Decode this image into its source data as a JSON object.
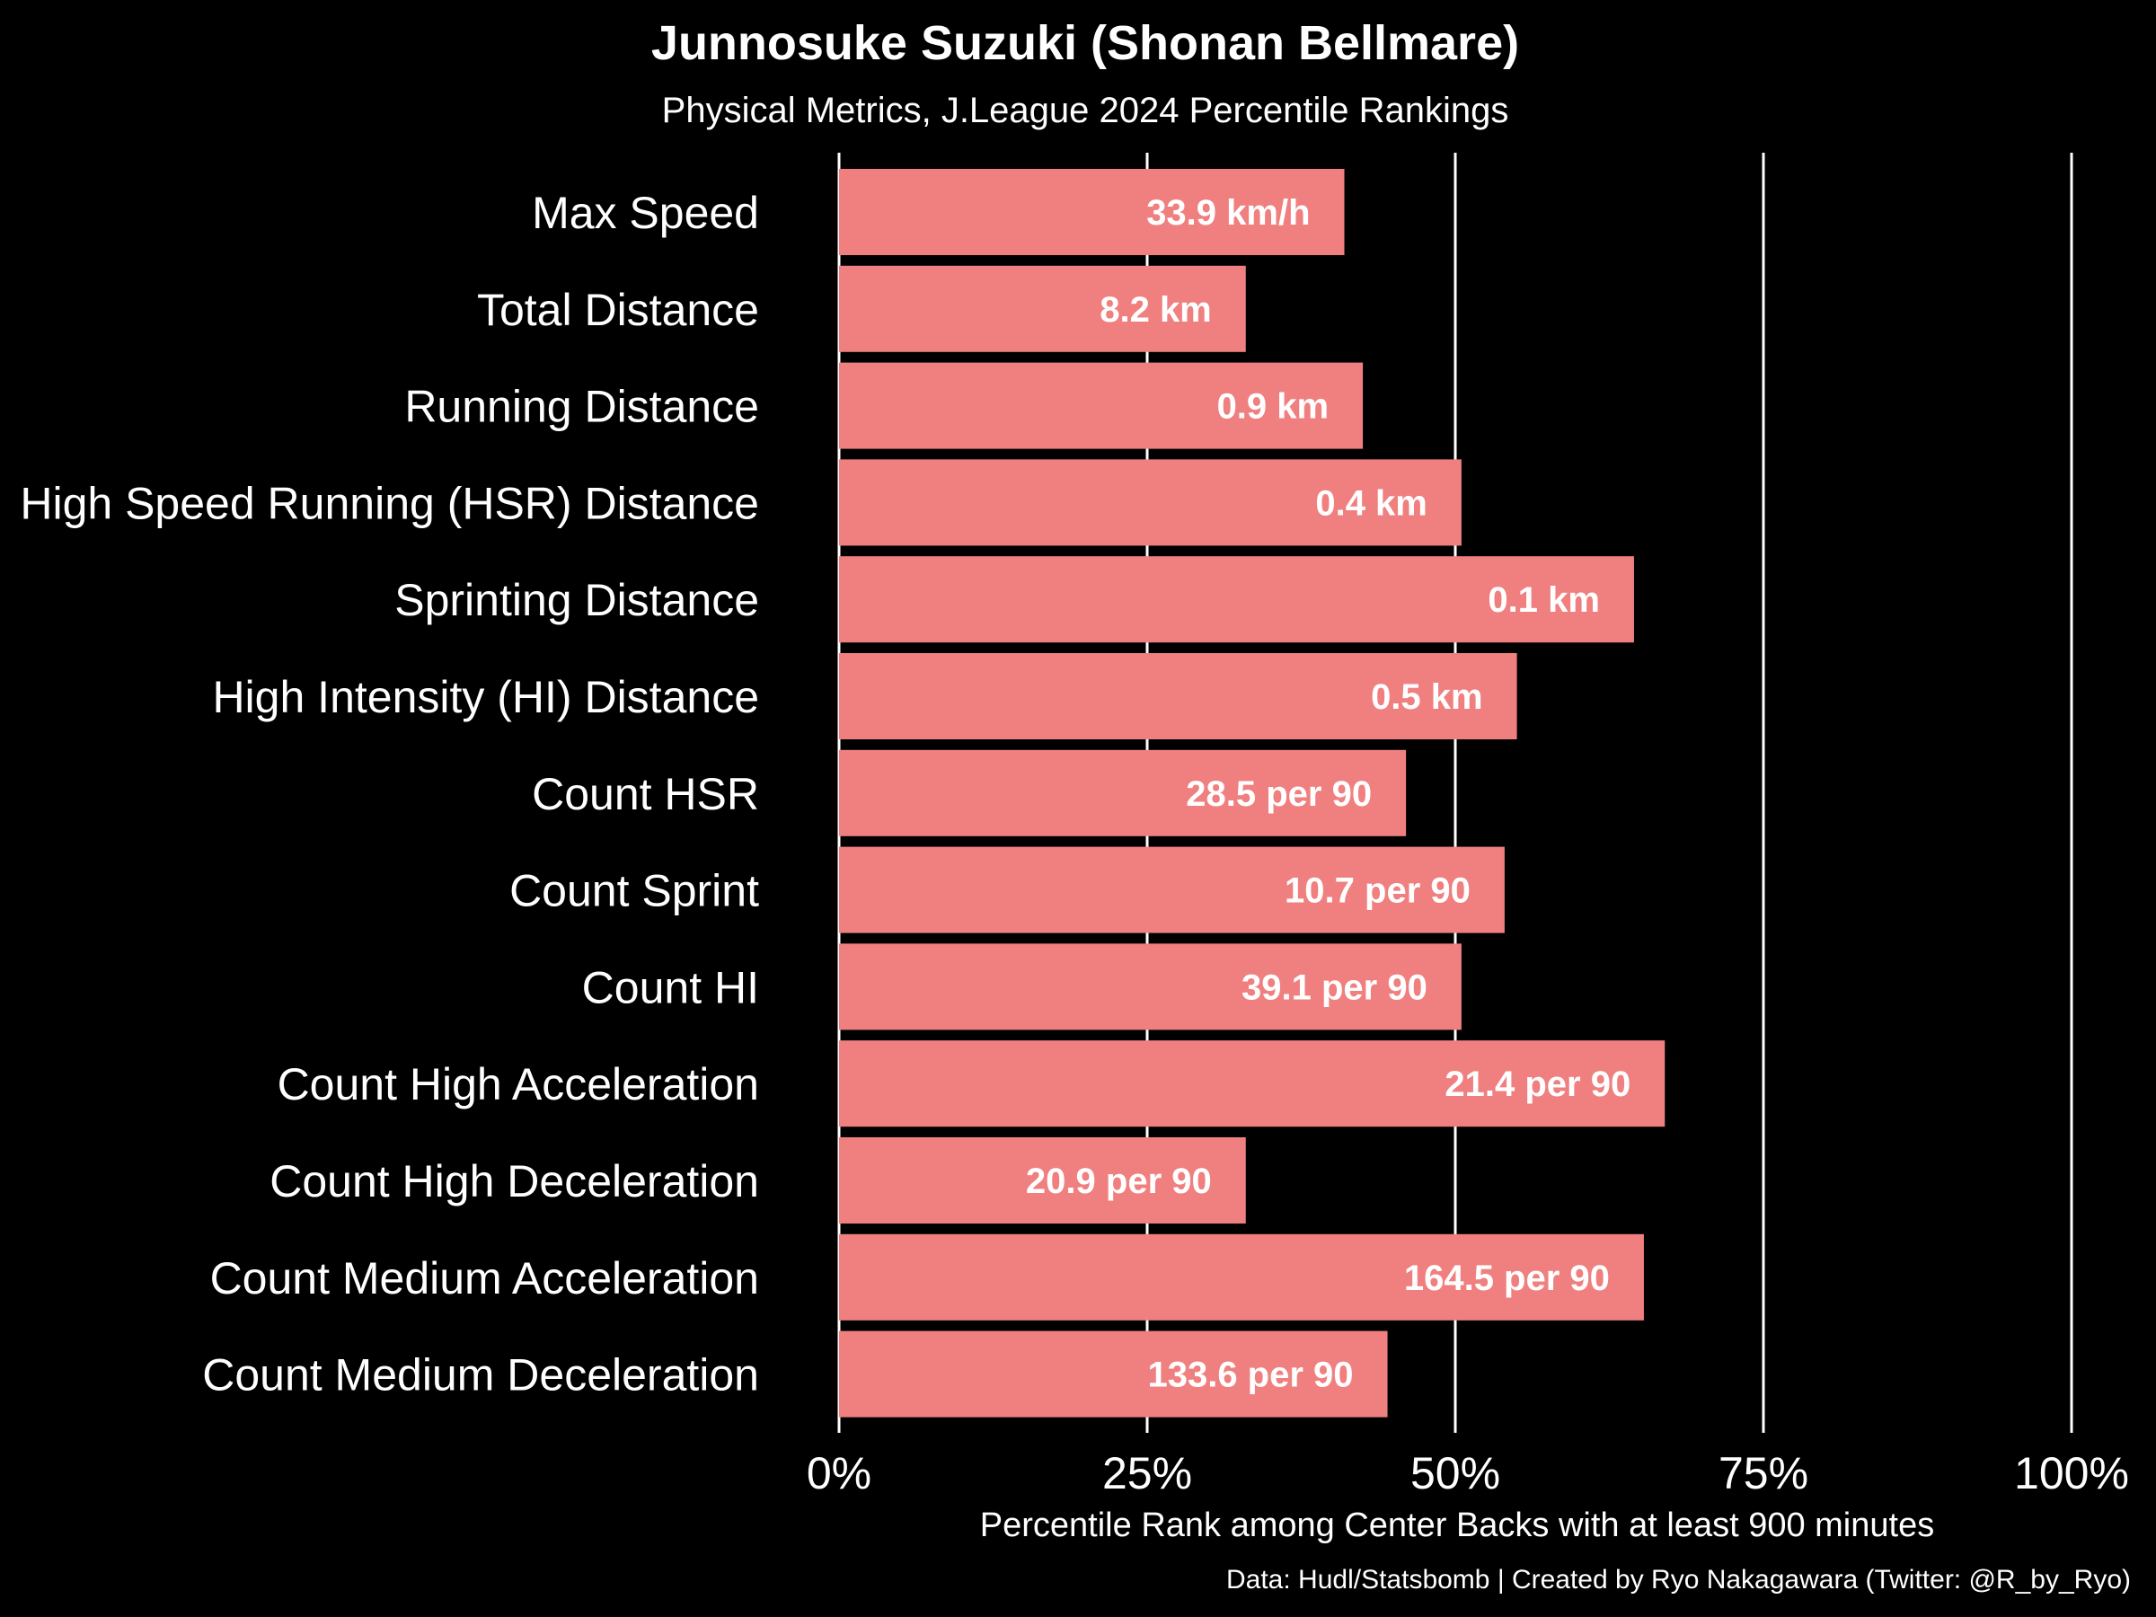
{
  "colors": {
    "background": "#000000",
    "bar": "#f08080",
    "text": "#ffffff",
    "grid": "#ffffff"
  },
  "chart_data": {
    "type": "bar",
    "orientation": "horizontal",
    "title": "Junnosuke Suzuki (Shonan Bellmare)",
    "subtitle": "Physical Metrics, J.League 2024 Percentile Rankings",
    "xlabel": "Percentile Rank among Center Backs with at least 900 minutes",
    "ylabel": "",
    "caption": "Data: Hudl/Statsbomb | Created by Ryo Nakagawara (Twitter: @R_by_Ryo)",
    "xlim": [
      0,
      100
    ],
    "xticks": [
      0,
      25,
      50,
      75,
      100
    ],
    "xtick_labels": [
      "0%",
      "25%",
      "50%",
      "75%",
      "100%"
    ],
    "grid": "vertical major lines",
    "legend": "none",
    "categories": [
      "Max Speed",
      "Total Distance",
      "Running Distance",
      "High Speed Running (HSR) Distance",
      "Sprinting Distance",
      "High Intensity (HI) Distance",
      "Count HSR",
      "Count Sprint",
      "Count HI",
      "Count High Acceleration",
      "Count High Deceleration",
      "Count Medium Acceleration",
      "Count Medium Deceleration"
    ],
    "values": [
      41,
      33,
      42.5,
      50.5,
      64.5,
      55,
      46,
      54,
      50.5,
      67,
      33,
      65.3,
      44.5
    ],
    "value_labels": [
      "33.9 km/h",
      "8.2 km",
      "0.9 km",
      "0.4 km",
      "0.1 km",
      "0.5 km",
      "28.5 per 90",
      "10.7 per 90",
      "39.1 per 90",
      "21.4 per 90",
      "20.9 per 90",
      "164.5 per 90",
      "133.6 per 90"
    ]
  }
}
